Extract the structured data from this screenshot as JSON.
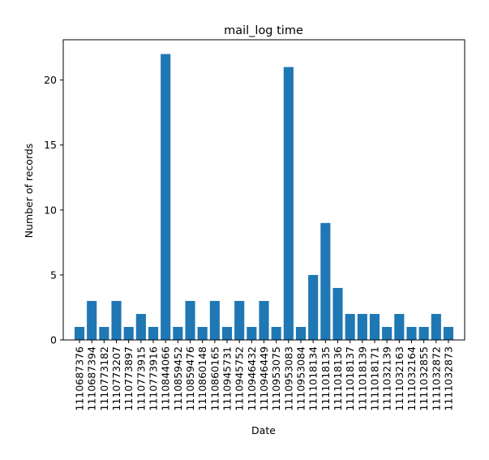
{
  "chart_data": {
    "type": "bar",
    "title": "mail_log time",
    "xlabel": "Date",
    "ylabel": "Number of records",
    "bar_color": "#1f77b4",
    "ylim": [
      0,
      23.1
    ],
    "yticks": [
      0,
      5,
      10,
      15,
      20
    ],
    "grid": false,
    "categories": [
      "1110687376",
      "1110687394",
      "1110773182",
      "1110773207",
      "1110773897",
      "1110773915",
      "1110773916",
      "1110844066",
      "1110859452",
      "1110859476",
      "1110860148",
      "1110860165",
      "1110945731",
      "1110945752",
      "1110946432",
      "1110946449",
      "1110953075",
      "1110953083",
      "1110953084",
      "1111018134",
      "1111018135",
      "1111018136",
      "1111018137",
      "1111018139",
      "1111018171",
      "1111032139",
      "1111032163",
      "1111032164",
      "1111032855",
      "1111032872",
      "1111032873"
    ],
    "values": [
      1,
      3,
      1,
      3,
      1,
      2,
      1,
      22,
      1,
      3,
      1,
      3,
      1,
      3,
      1,
      3,
      1,
      21,
      1,
      5,
      9,
      4,
      2,
      2,
      2,
      1,
      2,
      1,
      1,
      2,
      1
    ]
  }
}
